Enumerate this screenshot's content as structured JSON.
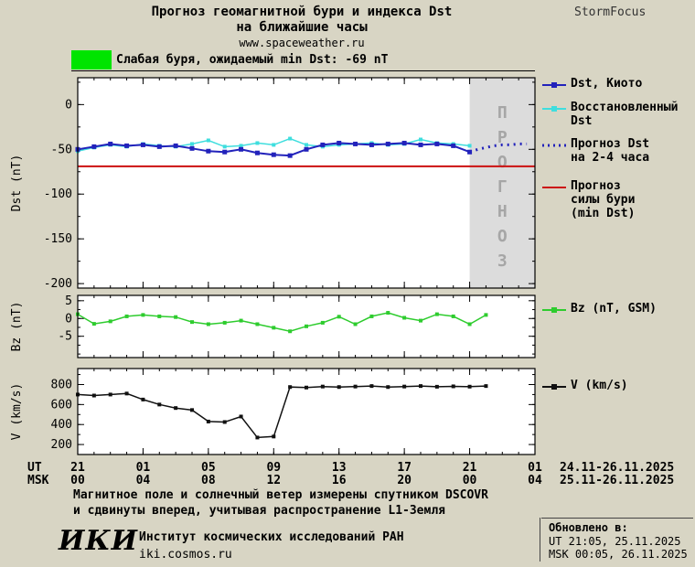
{
  "header": {
    "title_line1": "Прогноз геомагнитной бури и индекса Dst",
    "title_line2": "на ближайшие часы",
    "website": "www.spaceweather.ru",
    "brand": "StormFocus"
  },
  "alert": {
    "swatch_color": "#00e400",
    "text": "Слабая буря, ожидаемый min Dst: -69 nT"
  },
  "forecast_watermark": "ПРОГНОЗ",
  "chart_data": [
    {
      "type": "line",
      "id": "dst",
      "ylabel": "Dst (nT)",
      "ylim": [
        -205,
        30
      ],
      "yticks": [
        0,
        -50,
        -100,
        -150,
        -200
      ],
      "yminor": 25,
      "xlim": [
        0,
        28
      ],
      "xticks": [
        0,
        4,
        8,
        12,
        16,
        20,
        24,
        28
      ],
      "xminor": 1,
      "forecast_start": 24,
      "series": [
        {
          "name": "Восстановленный Dst",
          "color": "#3fdede",
          "width": 1.5,
          "marker": 4,
          "x0": 0,
          "dx": 1,
          "values": [
            -52,
            -48,
            -45,
            -47,
            -44,
            -46,
            -47,
            -44,
            -40,
            -47,
            -46,
            -43,
            -45,
            -38,
            -45,
            -47,
            -45,
            -44,
            -43,
            -45,
            -44,
            -39,
            -43,
            -44,
            -46
          ]
        },
        {
          "name": "Dst, Киото",
          "color": "#2222bb",
          "width": 2,
          "marker": 5,
          "x0": 0,
          "dx": 1,
          "values": [
            -50,
            -47,
            -44,
            -46,
            -45,
            -47,
            -46,
            -49,
            -52,
            -53,
            -50,
            -54,
            -56,
            -57,
            -50,
            -45,
            -43,
            -44,
            -45,
            -44,
            -43,
            -45,
            -44,
            -46,
            -53
          ]
        },
        {
          "name": "Прогноз Dst на 2-4 часа",
          "color": "#2222bb",
          "width": 3,
          "dash": "2 5",
          "x0": 24,
          "dx": 0.5,
          "values": [
            -53,
            -50,
            -48,
            -46,
            -45,
            -45,
            -44,
            -44
          ]
        },
        {
          "name": "Прогноз силы бури (min Dst)",
          "color": "#cc1111",
          "width": 2,
          "hline": -69
        }
      ]
    },
    {
      "type": "line",
      "id": "bz",
      "ylabel": "Bz (nT)",
      "ylim": [
        -11,
        6.5
      ],
      "yticks": [
        5,
        0,
        -5
      ],
      "yminor": 2.5,
      "xlim": [
        0,
        28
      ],
      "xticks": [
        0,
        4,
        8,
        12,
        16,
        20,
        24,
        28
      ],
      "xminor": 1,
      "series": [
        {
          "name": "Bz (nT, GSM)",
          "color": "#2ecc2e",
          "width": 1.5,
          "marker": 4,
          "x0": 0,
          "dx": 1,
          "values": [
            1.2,
            -1.5,
            -0.8,
            0.6,
            1.0,
            0.6,
            0.4,
            -1.0,
            -1.6,
            -1.2,
            -0.6,
            -1.6,
            -2.6,
            -3.6,
            -2.2,
            -1.2,
            0.5,
            -1.6,
            0.6,
            1.6,
            0.2,
            -0.6,
            1.2,
            0.6,
            -1.6,
            1.0
          ]
        }
      ]
    },
    {
      "type": "line",
      "id": "v",
      "ylabel": "V (km/s)",
      "ylim": [
        100,
        960
      ],
      "yticks": [
        800,
        600,
        400,
        200
      ],
      "yminor": 100,
      "xlim": [
        0,
        28
      ],
      "xticks": [
        0,
        4,
        8,
        12,
        16,
        20,
        24,
        28
      ],
      "xminor": 1,
      "series": [
        {
          "name": "V (km/s)",
          "color": "#111111",
          "width": 1.5,
          "marker": 4,
          "x0": 0,
          "dx": 1,
          "values": [
            700,
            690,
            700,
            710,
            650,
            600,
            565,
            545,
            430,
            425,
            480,
            270,
            280,
            775,
            770,
            780,
            775,
            780,
            785,
            775,
            780,
            785,
            778,
            782,
            779,
            785
          ]
        }
      ]
    }
  ],
  "xaxis": {
    "ut_label": "UT",
    "msk_label": "MSK",
    "ut_ticks": [
      "21",
      "01",
      "05",
      "09",
      "13",
      "17",
      "21",
      "01"
    ],
    "msk_ticks": [
      "00",
      "04",
      "08",
      "12",
      "16",
      "20",
      "00",
      "04"
    ],
    "ut_dates": "24.11-26.11.2025",
    "msk_dates": "25.11-26.11.2025"
  },
  "legend": [
    {
      "id": "dst-kyoto",
      "lines": [
        "Dst, Киото"
      ],
      "color": "#2222bb",
      "glyph": "line-square"
    },
    {
      "id": "dst-restored",
      "lines": [
        "Восстановленный",
        "Dst"
      ],
      "color": "#3fdede",
      "glyph": "line-square"
    },
    {
      "id": "dst-forecast",
      "lines": [
        "Прогноз Dst",
        "на 2-4 часа"
      ],
      "color": "#2222bb",
      "glyph": "dotted"
    },
    {
      "id": "storm-forecast",
      "lines": [
        "Прогноз",
        "силы бури",
        "(min Dst)"
      ],
      "color": "#cc1111",
      "glyph": "line"
    },
    {
      "id": "bz",
      "lines": [
        "Bz (nT, GSM)"
      ],
      "color": "#2ecc2e",
      "glyph": "line-square"
    },
    {
      "id": "v",
      "lines": [
        "V (km/s)"
      ],
      "color": "#111111",
      "glyph": "line-square"
    }
  ],
  "footer": {
    "note_line1": "Магнитное поле и солнечный ветер измерены спутником DSCOVR",
    "note_line2": "и сдвинуты вперед, учитывая распространение L1-Земля",
    "updated_label": "Обновлено в:",
    "updated_ut": "UT  21:05, 25.11.2025",
    "updated_msk": "MSK 00:05, 26.11.2025",
    "logo": "ИКИ",
    "institute": "Институт космических исследований РАН",
    "site": "iki.cosmos.ru"
  }
}
